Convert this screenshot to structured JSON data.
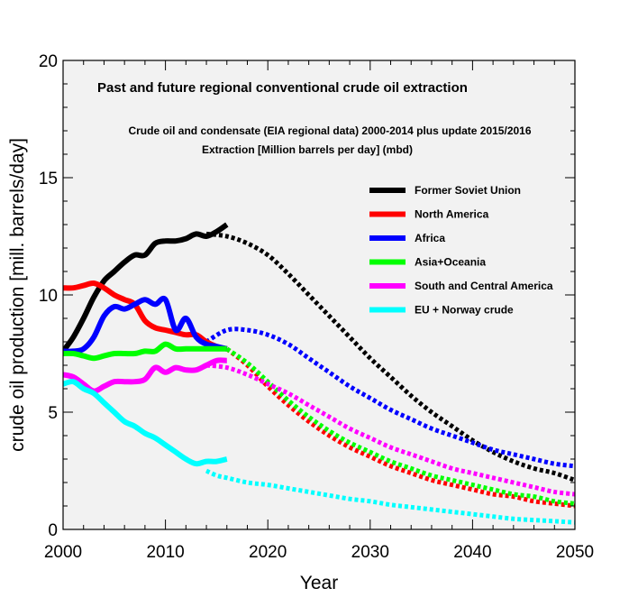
{
  "chart_data": {
    "type": "line",
    "title": "Past and future regional conventional crude oil extraction",
    "subtitle_lines": [
      "Crude oil and condensate (EIA regional data) 2000-2014 plus update 2015/2016",
      "Extraction [Million barrels per day] (mbd)"
    ],
    "xlabel": "Year",
    "ylabel": "crude oil production [mill. barrels/day]",
    "xlim": [
      2000,
      2050
    ],
    "ylim": [
      0,
      20
    ],
    "xticks": [
      2000,
      2010,
      2020,
      2030,
      2040,
      2050
    ],
    "yticks": [
      0,
      5,
      10,
      15,
      20
    ],
    "legend_position": "upper-right",
    "background_color": "#f2f2f2",
    "series": [
      {
        "name": "Former Soviet Union",
        "color": "#000000",
        "historical": [
          [
            2000,
            7.6
          ],
          [
            2001,
            8.2
          ],
          [
            2002,
            9.0
          ],
          [
            2003,
            9.9
          ],
          [
            2004,
            10.6
          ],
          [
            2005,
            11.0
          ],
          [
            2006,
            11.4
          ],
          [
            2007,
            11.7
          ],
          [
            2008,
            11.7
          ],
          [
            2009,
            12.2
          ],
          [
            2010,
            12.3
          ],
          [
            2011,
            12.3
          ],
          [
            2012,
            12.4
          ],
          [
            2013,
            12.6
          ],
          [
            2014,
            12.5
          ],
          [
            2015,
            12.7
          ],
          [
            2016,
            13.0
          ]
        ],
        "projection": [
          [
            2014,
            12.6
          ],
          [
            2016,
            12.5
          ],
          [
            2018,
            12.2
          ],
          [
            2020,
            11.7
          ],
          [
            2022,
            10.9
          ],
          [
            2024,
            10.0
          ],
          [
            2026,
            9.1
          ],
          [
            2028,
            8.2
          ],
          [
            2030,
            7.3
          ],
          [
            2032,
            6.5
          ],
          [
            2034,
            5.7
          ],
          [
            2036,
            5.0
          ],
          [
            2038,
            4.4
          ],
          [
            2040,
            3.8
          ],
          [
            2042,
            3.3
          ],
          [
            2044,
            2.9
          ],
          [
            2046,
            2.6
          ],
          [
            2048,
            2.4
          ],
          [
            2050,
            2.1
          ]
        ]
      },
      {
        "name": "North America",
        "color": "#ff0000",
        "historical": [
          [
            2000,
            10.3
          ],
          [
            2001,
            10.3
          ],
          [
            2002,
            10.4
          ],
          [
            2003,
            10.5
          ],
          [
            2004,
            10.3
          ],
          [
            2005,
            10.0
          ],
          [
            2006,
            9.8
          ],
          [
            2007,
            9.6
          ],
          [
            2008,
            8.9
          ],
          [
            2009,
            8.6
          ],
          [
            2010,
            8.5
          ],
          [
            2011,
            8.4
          ],
          [
            2012,
            8.3
          ],
          [
            2013,
            8.3
          ],
          [
            2014,
            8.0
          ],
          [
            2015,
            7.8
          ],
          [
            2016,
            7.7
          ]
        ],
        "projection": [
          [
            2016,
            7.7
          ],
          [
            2018,
            7.0
          ],
          [
            2020,
            6.1
          ],
          [
            2022,
            5.3
          ],
          [
            2024,
            4.6
          ],
          [
            2026,
            4.0
          ],
          [
            2028,
            3.5
          ],
          [
            2030,
            3.1
          ],
          [
            2032,
            2.7
          ],
          [
            2034,
            2.4
          ],
          [
            2036,
            2.1
          ],
          [
            2038,
            1.9
          ],
          [
            2040,
            1.7
          ],
          [
            2042,
            1.5
          ],
          [
            2044,
            1.4
          ],
          [
            2046,
            1.2
          ],
          [
            2048,
            1.1
          ],
          [
            2050,
            1.0
          ]
        ]
      },
      {
        "name": "Africa",
        "color": "#0000ff",
        "historical": [
          [
            2000,
            7.6
          ],
          [
            2001,
            7.6
          ],
          [
            2002,
            7.7
          ],
          [
            2003,
            8.2
          ],
          [
            2004,
            9.1
          ],
          [
            2005,
            9.5
          ],
          [
            2006,
            9.4
          ],
          [
            2007,
            9.6
          ],
          [
            2008,
            9.8
          ],
          [
            2009,
            9.6
          ],
          [
            2010,
            9.8
          ],
          [
            2011,
            8.5
          ],
          [
            2012,
            9.0
          ],
          [
            2013,
            8.2
          ],
          [
            2014,
            7.9
          ],
          [
            2015,
            7.8
          ],
          [
            2016,
            7.7
          ]
        ],
        "projection": [
          [
            2014,
            8.0
          ],
          [
            2016,
            8.5
          ],
          [
            2018,
            8.5
          ],
          [
            2020,
            8.3
          ],
          [
            2022,
            7.9
          ],
          [
            2024,
            7.3
          ],
          [
            2026,
            6.7
          ],
          [
            2028,
            6.1
          ],
          [
            2030,
            5.6
          ],
          [
            2032,
            5.1
          ],
          [
            2034,
            4.7
          ],
          [
            2036,
            4.3
          ],
          [
            2038,
            4.0
          ],
          [
            2040,
            3.7
          ],
          [
            2042,
            3.4
          ],
          [
            2044,
            3.2
          ],
          [
            2046,
            3.0
          ],
          [
            2048,
            2.8
          ],
          [
            2050,
            2.7
          ]
        ]
      },
      {
        "name": "Asia+Oceania",
        "color": "#00ff00",
        "historical": [
          [
            2000,
            7.5
          ],
          [
            2001,
            7.5
          ],
          [
            2002,
            7.4
          ],
          [
            2003,
            7.3
          ],
          [
            2004,
            7.4
          ],
          [
            2005,
            7.5
          ],
          [
            2006,
            7.5
          ],
          [
            2007,
            7.5
          ],
          [
            2008,
            7.6
          ],
          [
            2009,
            7.6
          ],
          [
            2010,
            7.9
          ],
          [
            2011,
            7.7
          ],
          [
            2012,
            7.7
          ],
          [
            2013,
            7.7
          ],
          [
            2014,
            7.7
          ],
          [
            2015,
            7.7
          ],
          [
            2016,
            7.7
          ]
        ],
        "projection": [
          [
            2016,
            7.7
          ],
          [
            2018,
            7.1
          ],
          [
            2020,
            6.3
          ],
          [
            2022,
            5.5
          ],
          [
            2024,
            4.8
          ],
          [
            2026,
            4.2
          ],
          [
            2028,
            3.7
          ],
          [
            2030,
            3.3
          ],
          [
            2032,
            2.9
          ],
          [
            2034,
            2.6
          ],
          [
            2036,
            2.3
          ],
          [
            2038,
            2.1
          ],
          [
            2040,
            1.9
          ],
          [
            2042,
            1.7
          ],
          [
            2044,
            1.5
          ],
          [
            2046,
            1.4
          ],
          [
            2048,
            1.2
          ],
          [
            2050,
            1.1
          ]
        ]
      },
      {
        "name": "South and Central America",
        "color": "#ff00ff",
        "historical": [
          [
            2000,
            6.6
          ],
          [
            2001,
            6.5
          ],
          [
            2002,
            6.2
          ],
          [
            2003,
            5.9
          ],
          [
            2004,
            6.1
          ],
          [
            2005,
            6.3
          ],
          [
            2006,
            6.3
          ],
          [
            2007,
            6.3
          ],
          [
            2008,
            6.4
          ],
          [
            2009,
            6.9
          ],
          [
            2010,
            6.7
          ],
          [
            2011,
            6.9
          ],
          [
            2012,
            6.8
          ],
          [
            2013,
            6.8
          ],
          [
            2014,
            7.0
          ],
          [
            2015,
            7.2
          ],
          [
            2016,
            7.2
          ]
        ],
        "projection": [
          [
            2014,
            7.0
          ],
          [
            2016,
            6.9
          ],
          [
            2018,
            6.6
          ],
          [
            2020,
            6.2
          ],
          [
            2022,
            5.8
          ],
          [
            2024,
            5.3
          ],
          [
            2026,
            4.8
          ],
          [
            2028,
            4.3
          ],
          [
            2030,
            3.9
          ],
          [
            2032,
            3.5
          ],
          [
            2034,
            3.2
          ],
          [
            2036,
            2.9
          ],
          [
            2038,
            2.6
          ],
          [
            2040,
            2.4
          ],
          [
            2042,
            2.2
          ],
          [
            2044,
            2.0
          ],
          [
            2046,
            1.8
          ],
          [
            2048,
            1.6
          ],
          [
            2050,
            1.5
          ]
        ]
      },
      {
        "name": "EU + Norway crude",
        "color": "#00ffff",
        "historical": [
          [
            2000,
            6.2
          ],
          [
            2001,
            6.3
          ],
          [
            2002,
            6.0
          ],
          [
            2003,
            5.8
          ],
          [
            2004,
            5.4
          ],
          [
            2005,
            5.0
          ],
          [
            2006,
            4.6
          ],
          [
            2007,
            4.4
          ],
          [
            2008,
            4.1
          ],
          [
            2009,
            3.9
          ],
          [
            2010,
            3.6
          ],
          [
            2011,
            3.3
          ],
          [
            2012,
            3.0
          ],
          [
            2013,
            2.8
          ],
          [
            2014,
            2.9
          ],
          [
            2015,
            2.9
          ],
          [
            2016,
            3.0
          ]
        ],
        "projection": [
          [
            2014,
            2.5
          ],
          [
            2015,
            2.3
          ],
          [
            2016,
            2.2
          ],
          [
            2018,
            2.0
          ],
          [
            2020,
            1.9
          ],
          [
            2022,
            1.75
          ],
          [
            2024,
            1.6
          ],
          [
            2026,
            1.45
          ],
          [
            2028,
            1.3
          ],
          [
            2030,
            1.2
          ],
          [
            2032,
            1.05
          ],
          [
            2034,
            0.95
          ],
          [
            2036,
            0.85
          ],
          [
            2038,
            0.75
          ],
          [
            2040,
            0.65
          ],
          [
            2042,
            0.55
          ],
          [
            2044,
            0.45
          ],
          [
            2046,
            0.4
          ],
          [
            2048,
            0.35
          ],
          [
            2050,
            0.3
          ]
        ]
      }
    ]
  }
}
